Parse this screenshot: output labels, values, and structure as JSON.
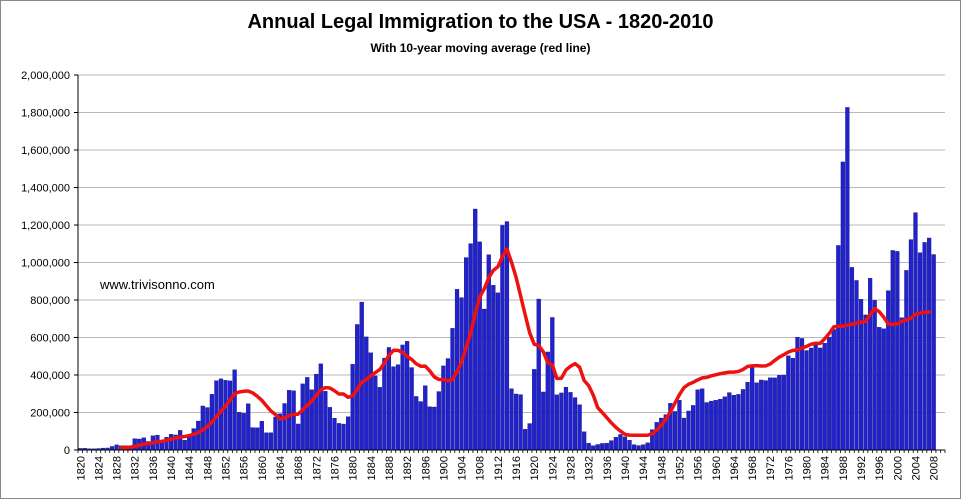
{
  "chart_data": {
    "type": "bar",
    "title": "Annual Legal Immigration to the USA - 1820-2010",
    "subtitle": "With 10-year moving average (red line)",
    "annotation": "www.trivisonno.com",
    "xlabel": "",
    "ylabel": "",
    "ylim": [
      0,
      2000000
    ],
    "yticks": [
      0,
      200000,
      400000,
      600000,
      800000,
      1000000,
      1200000,
      1400000,
      1600000,
      1800000,
      2000000
    ],
    "ytick_labels": [
      "0",
      "200,000",
      "400,000",
      "600,000",
      "800,000",
      "1,000,000",
      "1,200,000",
      "1,400,000",
      "1,600,000",
      "1,800,000",
      "2,000,000"
    ],
    "xtick_labels": [
      "1820",
      "1824",
      "1828",
      "1832",
      "1836",
      "1840",
      "1844",
      "1848",
      "1852",
      "1856",
      "1860",
      "1864",
      "1868",
      "1872",
      "1876",
      "1880",
      "1884",
      "1888",
      "1892",
      "1896",
      "1900",
      "1904",
      "1908",
      "1912",
      "1916",
      "1920",
      "1924",
      "1928",
      "1932",
      "1936",
      "1940",
      "1944",
      "1948",
      "1952",
      "1956",
      "1960",
      "1964",
      "1968",
      "1972",
      "1976",
      "1980",
      "1984",
      "1988",
      "1992",
      "1996",
      "2000",
      "2004",
      "2008"
    ],
    "start_year": 1820,
    "end_year": 2010,
    "grid": "horizontal",
    "colors": {
      "bars": "#2222cc",
      "bar_edge": "#000066",
      "moving_average": "#ee1111"
    },
    "series": [
      {
        "name": "Annual legal immigration",
        "values": [
          8385,
          9127,
          6911,
          6354,
          7912,
          10199,
          10837,
          18875,
          27382,
          22520,
          23322,
          22633,
          60482,
          58640,
          65365,
          45374,
          76242,
          79340,
          38914,
          68069,
          84066,
          80289,
          104565,
          52496,
          78615,
          114371,
          154416,
          234968,
          226527,
          297024,
          369980,
          379466,
          371603,
          368645,
          427833,
          200877,
          195857,
          246945,
          119501,
          118616,
          153640,
          91918,
          91985,
          176282,
          193418,
          248120,
          318568,
          315722,
          138840,
          352768,
          387203,
          321350,
          404806,
          459803,
          313339,
          227498,
          169986,
          141857,
          138469,
          177826,
          457257,
          669431,
          788992,
          603322,
          518592,
          395346,
          334203,
          490109,
          546889,
          444427,
          455302,
          560319,
          579663,
          439730,
          285631,
          258536,
          343267,
          230832,
          229299,
          311715,
          448572,
          487918,
          648743,
          857046,
          812870,
          1026499,
          1100735,
          1285349,
          1110000,
          751786,
          1041570,
          878587,
          838172,
          1197892,
          1218480,
          326700,
          298826,
          295403,
          110618,
          141132,
          430001,
          805228,
          309556,
          522919,
          706896,
          294314,
          304488,
          335175,
          307255,
          279678,
          241700,
          97139,
          35576,
          23068,
          29470,
          34956,
          36329,
          50244,
          67895,
          82998,
          70756,
          51776,
          28781,
          23725,
          28551,
          38119,
          108721,
          147292,
          170570,
          188317,
          249187,
          205717,
          265520,
          170434,
          208177,
          237790,
          321625,
          326867,
          253265,
          260686,
          265398,
          271344,
          283763,
          306260,
          292248,
          296697,
          323040,
          361972,
          454448,
          358579,
          373326,
          370478,
          385685,
          384685,
          398515,
          399690,
          502289,
          490000,
          601442,
          595011,
          530639,
          543903,
          559763,
          544490,
          570009,
          602405,
          643025,
          1090924,
          1536483,
          1827167,
          973977,
          904292,
          804416,
          720461,
          915900,
          798378,
          654451,
          646568,
          849807,
          1064318,
          1059356,
          705827,
          957883,
          1122257,
          1266129,
          1052415,
          1107126,
          1130818,
          1042625
        ]
      },
      {
        "name": "10-year moving average",
        "values": [
          null,
          null,
          null,
          null,
          null,
          null,
          null,
          null,
          null,
          11753,
          13247,
          14599,
          19971,
          25200,
          30946,
          34464,
          39005,
          45051,
          46204,
          50759,
          56894,
          63986,
          68351,
          71769,
          77094,
          83969,
          91727,
          107297,
          126058,
          148954,
          177545,
          207462,
          234166,
          265781,
          300703,
          309354,
          313498,
          314697,
          304394,
          286553,
          264919,
          236164,
          208202,
          189166,
          165724,
          170449,
          182720,
          189598,
          191532,
          214947,
          238303,
          261246,
          292528,
          320880,
          332872,
          330810,
          315952,
          298566,
          298529,
          281035,
          288040,
          322848,
          361267,
          375619,
          396144,
          412929,
          429350,
          464175,
          505017,
          531677,
          531482,
          520571,
          499638,
          483279,
          460183,
          446502,
          447408,
          421480,
          389721,
          376450,
          375550,
          368310,
          375218,
          416949,
          469673,
          546469,
          622216,
          727667,
          815737,
          859744,
          919044,
          958111,
          977077,
          1031162,
          1071723,
          1001743,
          921552,
          822557,
          722494,
          625472,
          564315,
          556979,
          524035,
          465223,
          454625,
          381386,
          382952,
          426929,
          446554,
          460409,
          441579,
          370781,
          343383,
          293398,
          225655,
          199719,
          172903,
          144410,
          120474,
          100806,
          83724,
          79187,
          78507,
          78573,
          78499,
          78853,
          86092,
          105929,
          132186,
          164678,
          202718,
          250073,
          295316,
          332786,
          350714,
          360681,
          373506,
          384472,
          387082,
          395707,
          401130,
          406757,
          411431,
          415303,
          415489,
          419039,
          429072,
          445876,
          448877,
          450087,
          447998,
          448384,
          458506,
          477806,
          495477,
          508349,
          522642,
          531357,
          533432,
          544042,
          552469,
          564385,
          569358,
          568641,
          593467,
          622117,
          656672,
          660576,
          659766,
          666175,
          670681,
          677272,
          681689,
          686315,
          722005,
          754001,
          737884,
          708299,
          672189,
          669635,
          671812,
          686963,
          693211,
          702989,
          723685,
          730458,
          734911,
          735738
        ]
      }
    ]
  }
}
